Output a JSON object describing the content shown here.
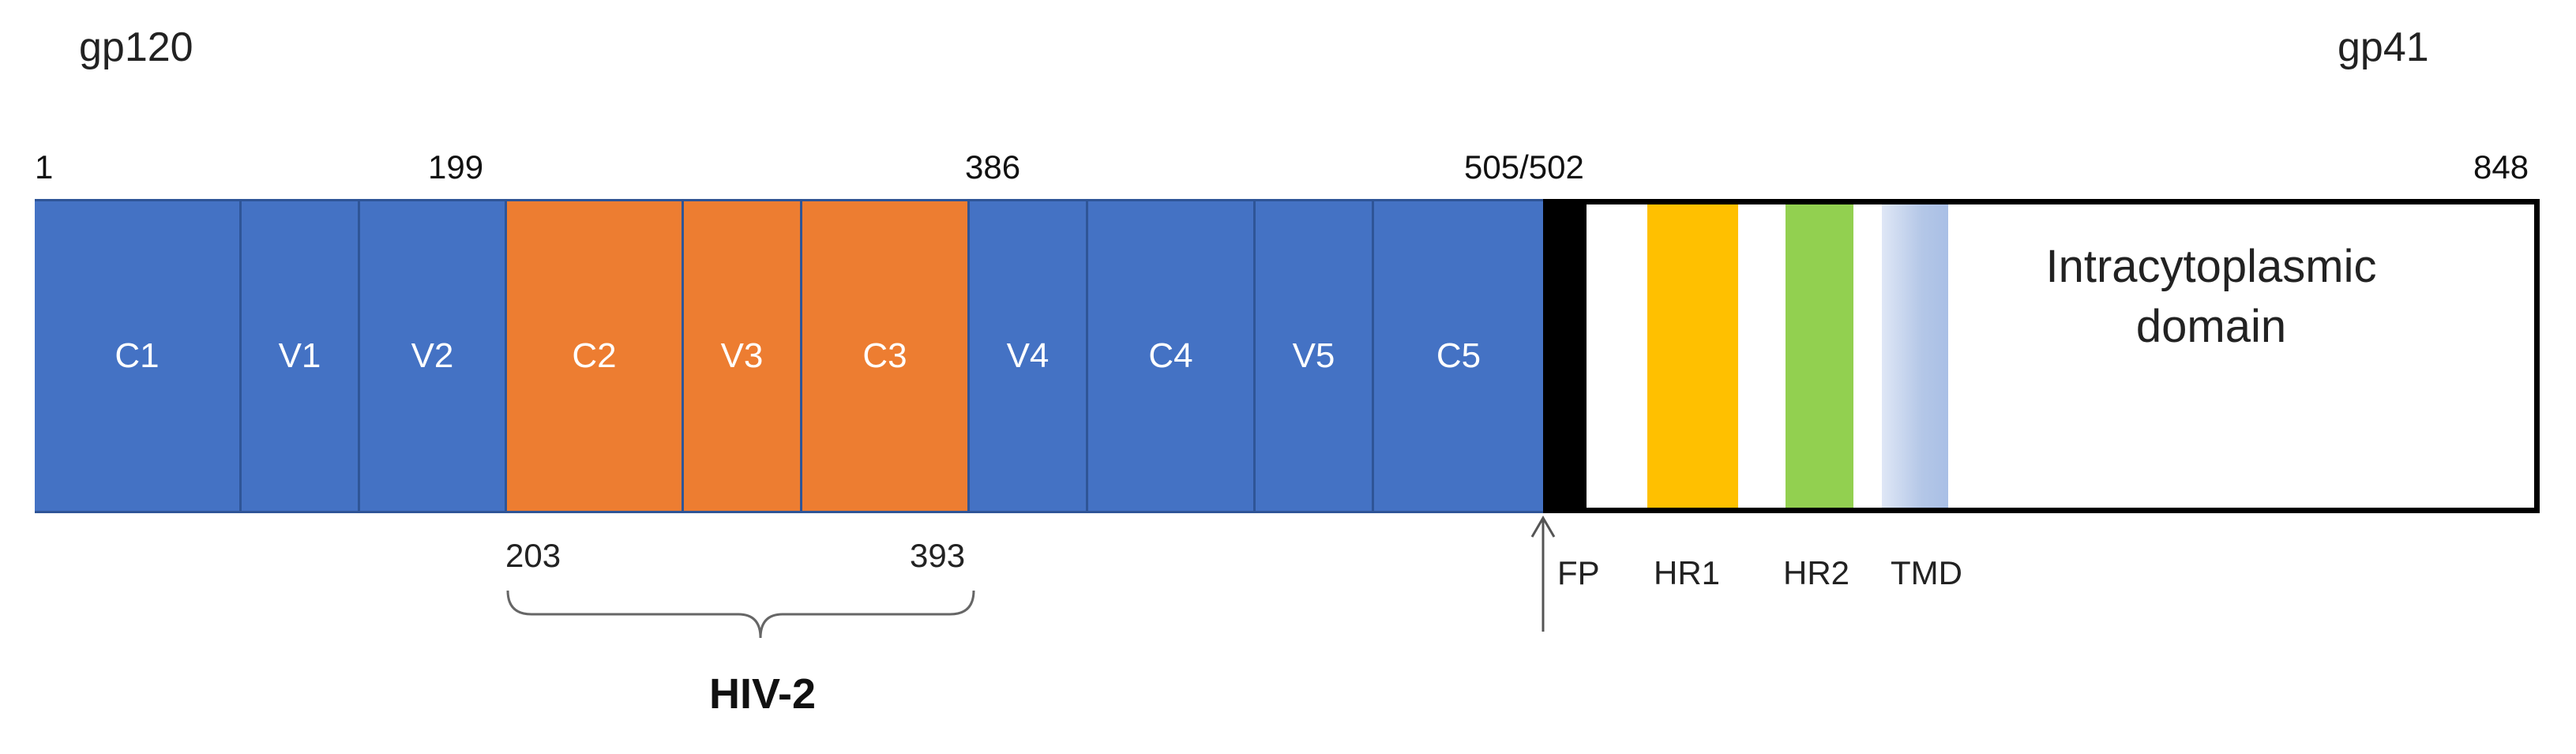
{
  "titles": {
    "left": "gp120",
    "right": "gp41"
  },
  "positions": {
    "start": "1",
    "v2_end": "199",
    "c3_end": "386",
    "cleavage": "505/502",
    "end": "848",
    "hiv2_start": "203",
    "hiv2_end": "393"
  },
  "gp120_segments": [
    {
      "label": "C1",
      "color": "#4472c4"
    },
    {
      "label": "V1",
      "color": "#4472c4"
    },
    {
      "label": "V2",
      "color": "#4472c4"
    },
    {
      "label": "C2",
      "color": "#ed7d31"
    },
    {
      "label": "V3",
      "color": "#ed7d31"
    },
    {
      "label": "C3",
      "color": "#ed7d31"
    },
    {
      "label": "V4",
      "color": "#4472c4"
    },
    {
      "label": "C4",
      "color": "#4472c4"
    },
    {
      "label": "V5",
      "color": "#4472c4"
    },
    {
      "label": "C5",
      "color": "#4472c4"
    }
  ],
  "gp41_domains": [
    {
      "label": "FP",
      "color": "#000000"
    },
    {
      "label": "HR1",
      "color": "#ffc000"
    },
    {
      "label": "HR2",
      "color": "#92d050"
    },
    {
      "label": "TMD",
      "color": "#b4c7e7"
    }
  ],
  "intracytoplasmic_label": "Intracytoplasmic domain",
  "hiv2_label": "HIV-2"
}
